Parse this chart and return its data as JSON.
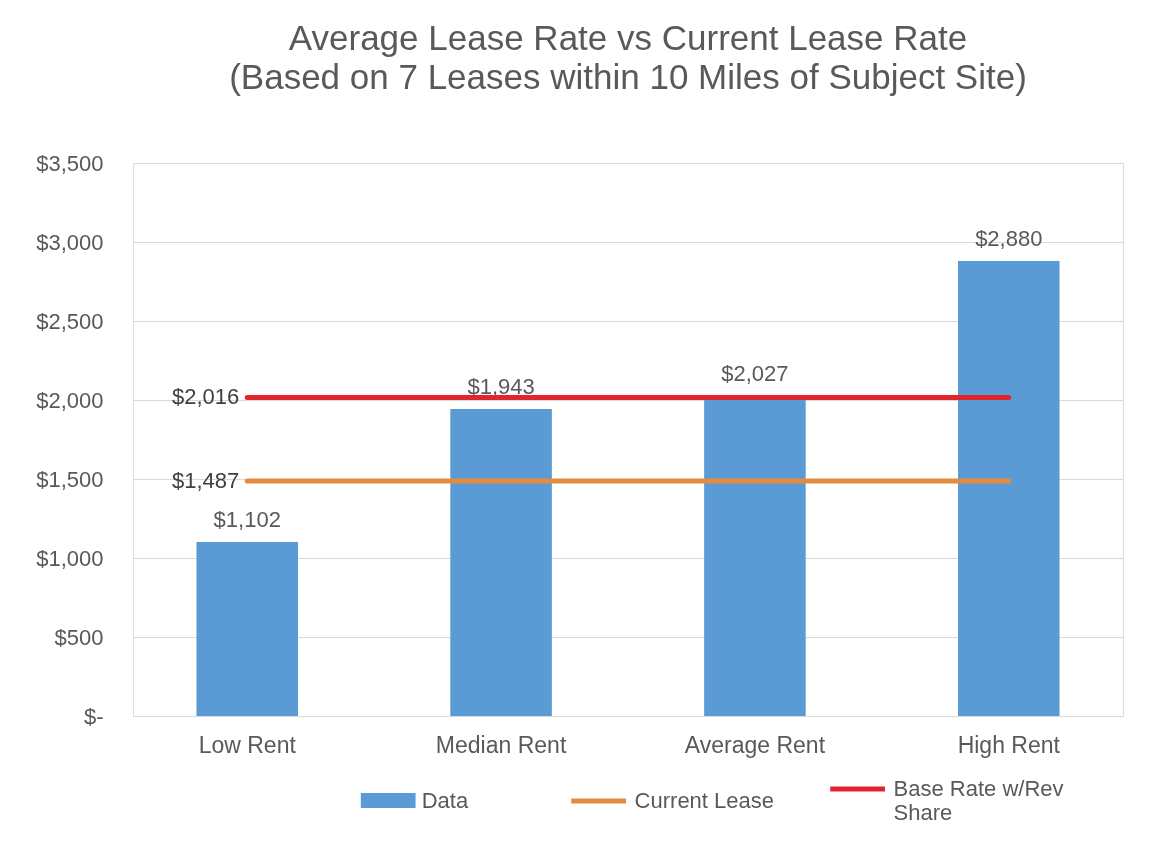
{
  "chart_data": {
    "type": "bar",
    "title": "Average Lease Rate vs Current Lease Rate",
    "subtitle": "(Based on 7 Leases within 10 Miles of Subject Site)",
    "categories": [
      "Low Rent",
      "Median Rent",
      "Average Rent",
      "High Rent"
    ],
    "series": [
      {
        "name": "Data",
        "color": "#5b9bd5",
        "values": [
          1102,
          1943,
          2027,
          2880
        ],
        "value_labels": [
          "$1,102",
          "$1,943",
          "$2,027",
          "$2,880"
        ]
      },
      {
        "name": "Current Lease",
        "type": "line",
        "color": "#e38b3f",
        "values": [
          1487,
          1487,
          1487,
          1487
        ],
        "value_labels": [
          "$1,487",
          null,
          null,
          null
        ]
      },
      {
        "name": "Base Rate w/Rev Share",
        "type": "line",
        "color": "#e0262c",
        "values": [
          2016,
          2016,
          2016,
          2016
        ],
        "value_labels": [
          "$2,016",
          null,
          null,
          null
        ]
      }
    ],
    "ylim": [
      0,
      3500
    ],
    "yticks": [
      {
        "value": 0,
        "label": "$-"
      },
      {
        "value": 500,
        "label": "$500"
      },
      {
        "value": 1000,
        "label": "$1,000"
      },
      {
        "value": 1500,
        "label": "$1,500"
      },
      {
        "value": 2000,
        "label": "$2,000"
      },
      {
        "value": 2500,
        "label": "$2,500"
      },
      {
        "value": 3000,
        "label": "$3,000"
      },
      {
        "value": 3500,
        "label": "$3,500"
      }
    ],
    "grid": "y",
    "legend": "bottom"
  }
}
